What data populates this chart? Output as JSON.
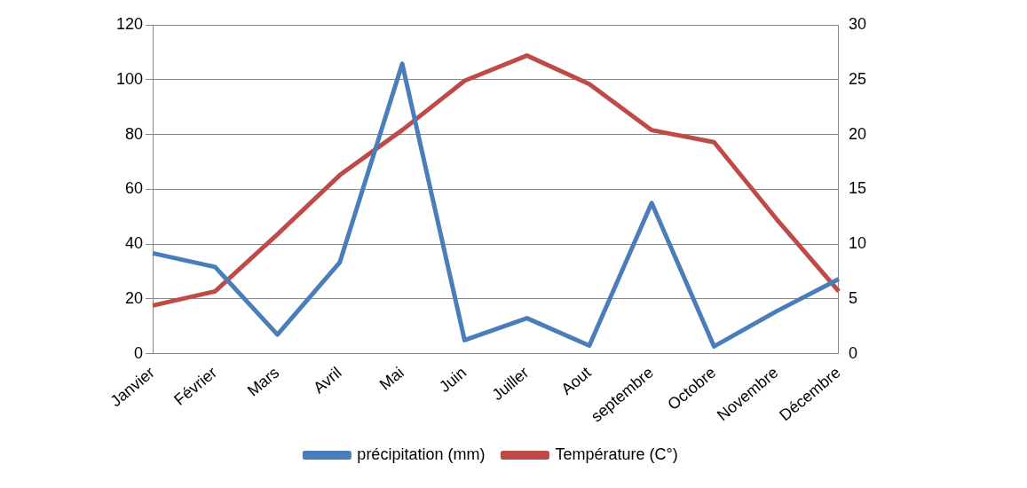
{
  "chart_data": {
    "type": "line",
    "categories": [
      "Janvier",
      "Février",
      "Mars",
      "Avril",
      "Mai",
      "Juin",
      "Juiller",
      "Aout",
      "septembre",
      "Octobre",
      "Novembre",
      "Décembre"
    ],
    "series": [
      {
        "name": "précipitation (mm)",
        "color": "#4a7ebb",
        "values": [
          36.7,
          31.7,
          7,
          33.4,
          105.8,
          5,
          13,
          3,
          55,
          2.7,
          15.5,
          27.3
        ]
      },
      {
        "name": "Température (C°)",
        "color": "#be4b48",
        "axis": "y2",
        "values": [
          4.4,
          5.7,
          10.9,
          16.3,
          20.4,
          24.9,
          27.2,
          24.6,
          20.4,
          19.3,
          12.3,
          5.7
        ]
      }
    ],
    "ylim": [
      0,
      120
    ],
    "yticks": [
      0,
      20,
      40,
      60,
      80,
      100,
      120
    ],
    "y2lim": [
      0,
      30
    ],
    "y2ticks": [
      0,
      5,
      10,
      15,
      20,
      25,
      30
    ],
    "grid": "y",
    "legend": "bottom",
    "marker": "none",
    "line_style": "solid"
  }
}
